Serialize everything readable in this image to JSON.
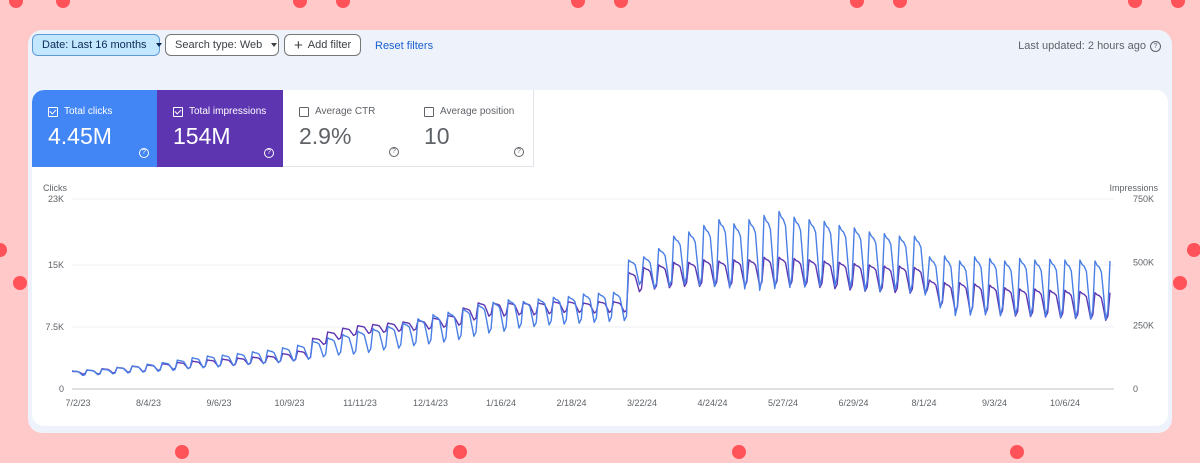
{
  "toolbar": {
    "date_filter": "Date: Last 16 months",
    "search_type": "Search type: Web",
    "add_filter": "Add filter",
    "reset_filters": "Reset filters",
    "last_updated": "Last updated: 2 hours ago"
  },
  "metrics": {
    "clicks": {
      "label": "Total clicks",
      "value": "4.45M",
      "checked": true
    },
    "impressions": {
      "label": "Total impressions",
      "value": "154M",
      "checked": true
    },
    "ctr": {
      "label": "Average CTR",
      "value": "2.9%",
      "checked": false
    },
    "position": {
      "label": "Average position",
      "value": "10",
      "checked": false
    }
  },
  "colors": {
    "clicks": "#4a7fe5",
    "impressions": "#5e35b1",
    "accent": "#1a5fd0"
  },
  "chart_data": {
    "type": "line",
    "left_axis": {
      "label": "Clicks",
      "ticks": [
        "0",
        "7.5K",
        "15K",
        "23K"
      ],
      "tick_values": [
        0,
        7500,
        15000,
        23000
      ],
      "range": [
        0,
        23000
      ]
    },
    "right_axis": {
      "label": "Impressions",
      "ticks": [
        "0",
        "250K",
        "500K",
        "750K"
      ],
      "tick_values": [
        0,
        250000,
        500000,
        750000
      ],
      "range": [
        0,
        750000
      ]
    },
    "x_ticks": [
      "7/2/23",
      "8/4/23",
      "9/6/23",
      "10/9/23",
      "11/11/23",
      "12/14/23",
      "1/16/24",
      "2/18/24",
      "3/22/24",
      "4/24/24",
      "5/27/24",
      "6/29/24",
      "8/1/24",
      "9/3/24",
      "10/6/24"
    ],
    "weeks": 69,
    "series": [
      {
        "name": "Clicks",
        "axis": "left",
        "weekly_peak": [
          2200,
          2300,
          2400,
          2600,
          2800,
          3000,
          3200,
          3500,
          3800,
          4000,
          4100,
          4300,
          4500,
          4700,
          5000,
          5300,
          5800,
          6200,
          6600,
          7000,
          7300,
          7600,
          8000,
          8500,
          9000,
          9300,
          9700,
          10200,
          10500,
          10800,
          10600,
          10900,
          11100,
          11200,
          11500,
          11600,
          11700,
          15600,
          16000,
          17000,
          18500,
          19000,
          19800,
          20500,
          20000,
          20500,
          21000,
          21500,
          20800,
          20500,
          20300,
          19800,
          19500,
          19000,
          18800,
          18500,
          18500,
          16000,
          16100,
          15500,
          16000,
          15800,
          15500,
          15800,
          15600,
          15700,
          15600,
          15600,
          15500
        ],
        "weekly_low": [
          1600,
          1700,
          1800,
          1900,
          2000,
          2100,
          2200,
          2400,
          2500,
          2600,
          2800,
          2900,
          3000,
          3100,
          3300,
          3500,
          3800,
          4000,
          4100,
          4300,
          4600,
          4800,
          5100,
          5300,
          5500,
          5800,
          6200,
          6600,
          6800,
          7200,
          7400,
          7600,
          7700,
          7800,
          7900,
          8000,
          8100,
          12500,
          12000,
          12200,
          12400,
          12200,
          12000,
          11800,
          11700,
          11500,
          11700,
          11800,
          11900,
          12000,
          12000,
          11800,
          11500,
          11400,
          11600,
          11300,
          11000,
          9500,
          8500,
          8600,
          8600,
          8500,
          8600,
          8500,
          8400,
          8300,
          8200,
          8100,
          8000
        ]
      },
      {
        "name": "Impressions",
        "axis": "right",
        "weekly_peak": [
          70000,
          75000,
          80000,
          85000,
          90000,
          95000,
          100000,
          105000,
          110000,
          115000,
          118000,
          122000,
          126000,
          130000,
          140000,
          150000,
          200000,
          225000,
          240000,
          250000,
          255000,
          260000,
          265000,
          270000,
          280000,
          290000,
          320000,
          340000,
          340000,
          340000,
          340000,
          340000,
          345000,
          345000,
          340000,
          345000,
          345000,
          460000,
          480000,
          490000,
          500000,
          500000,
          510000,
          505000,
          510000,
          510000,
          520000,
          520000,
          515000,
          510000,
          505000,
          500000,
          495000,
          490000,
          485000,
          485000,
          480000,
          430000,
          420000,
          420000,
          415000,
          410000,
          400000,
          395000,
          395000,
          390000,
          390000,
          385000,
          380000
        ],
        "weekly_low": [
          58000,
          58000,
          62000,
          65000,
          68000,
          72000,
          76000,
          80000,
          85000,
          88000,
          92000,
          96000,
          100000,
          105000,
          110000,
          118000,
          175000,
          195000,
          210000,
          218000,
          222000,
          226000,
          230000,
          235000,
          242000,
          250000,
          270000,
          285000,
          285000,
          290000,
          290000,
          295000,
          300000,
          300000,
          298000,
          300000,
          302000,
          380000,
          390000,
          395000,
          400000,
          400000,
          400000,
          398000,
          400000,
          400000,
          400000,
          400000,
          398000,
          395000,
          390000,
          385000,
          380000,
          378000,
          375000,
          372000,
          370000,
          320000,
          300000,
          295000,
          290000,
          285000,
          282000,
          280000,
          278000,
          275000,
          272000,
          270000,
          265000
        ]
      }
    ]
  }
}
